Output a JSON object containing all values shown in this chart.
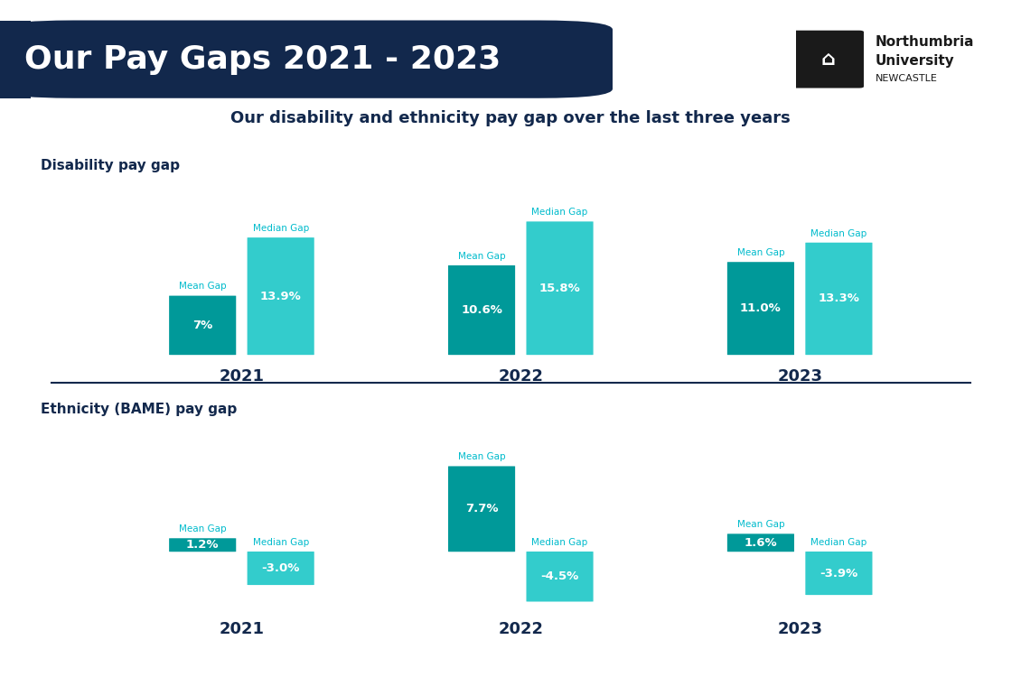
{
  "title": "Our Pay Gaps 2021 - 2023",
  "subtitle": "Our disability and ethnicity pay gap over the last three years",
  "header_bg": "#12284C",
  "header_text_color": "#ffffff",
  "subtitle_color": "#12284C",
  "section1_label": "Disability pay gap",
  "section2_label": "Ethnicity (BAME) pay gap",
  "bar_color_mean": "#009999",
  "bar_color_median": "#33CCCC",
  "label_color": "#00BBCC",
  "year_color": "#12284C",
  "value_text_color": "#ffffff",
  "separator_color": "#12284C",
  "logo_text1": "Northumbria",
  "logo_text2": "University",
  "logo_text3": "NEWCASTLE",
  "disability": {
    "years": [
      "2021",
      "2022",
      "2023"
    ],
    "mean_values": [
      7.0,
      10.6,
      11.0
    ],
    "median_values": [
      13.9,
      15.8,
      13.3
    ],
    "mean_labels": [
      "7%",
      "10.6%",
      "11.0%"
    ],
    "median_labels": [
      "13.9%",
      "15.8%",
      "13.3%"
    ]
  },
  "ethnicity": {
    "years": [
      "2021",
      "2022",
      "2023"
    ],
    "mean_values": [
      1.2,
      7.7,
      1.6
    ],
    "median_values": [
      -3.0,
      -4.5,
      -3.9
    ],
    "mean_labels": [
      "1.2%",
      "7.7%",
      "1.6%"
    ],
    "median_labels": [
      "-3.0%",
      "-4.5%",
      "-3.9%"
    ]
  }
}
